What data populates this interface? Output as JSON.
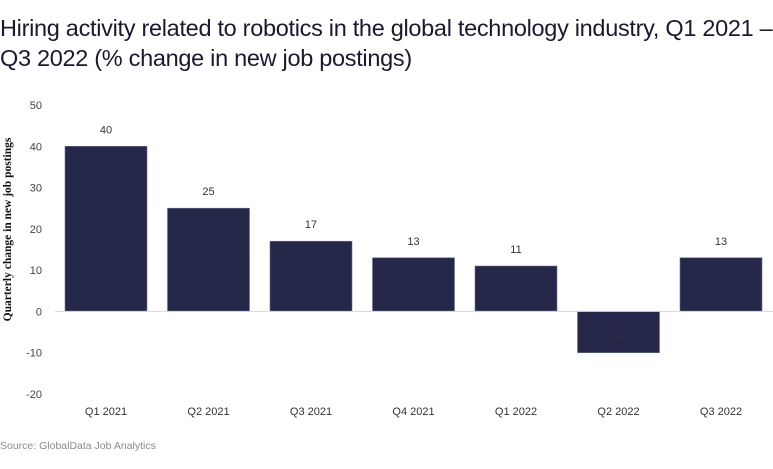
{
  "chart_data": {
    "type": "bar",
    "title": "Hiring activity related to robotics in the global technology industry, Q1 2021 – Q3 2022 (% change in new job postings)",
    "xlabel": "",
    "ylabel": "Quarterly change in new job postings",
    "categories": [
      "Q1 2021",
      "Q2 2021",
      "Q3 2021",
      "Q4 2021",
      "Q1 2022",
      "Q2 2022",
      "Q3 2022"
    ],
    "values": [
      40,
      25,
      17,
      13,
      11,
      -10,
      13
    ],
    "ylim": [
      -20,
      50
    ],
    "yticks": [
      50,
      40,
      30,
      20,
      10,
      0,
      -10,
      -20
    ],
    "grid": false,
    "bar_color": "#262849",
    "source": "Source: GlobalData Job Analytics"
  }
}
